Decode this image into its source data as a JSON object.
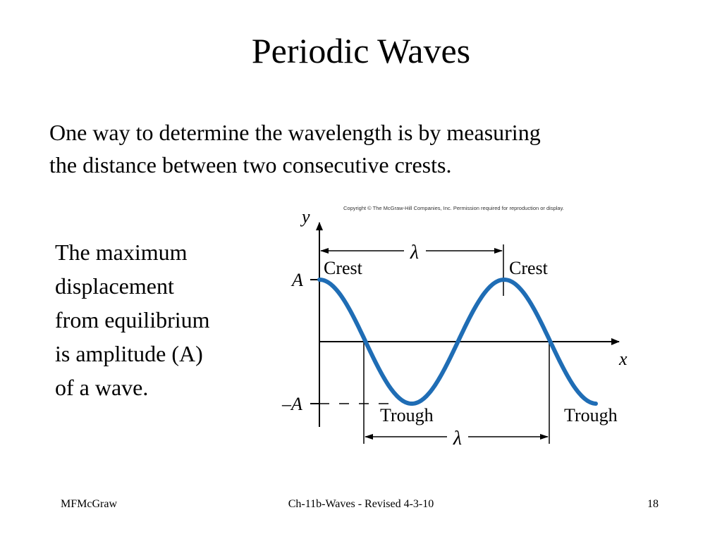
{
  "title": "Periodic Waves",
  "intro_lines": [
    "One way to determine the wavelength is by measuring",
    "the distance between two consecutive crests."
  ],
  "side_lines": [
    "The maximum",
    "displacement",
    "from equilibrium",
    "is amplitude (A)",
    "of a wave."
  ],
  "diagram": {
    "copyright": "Copyright © The McGraw-Hill Companies, Inc. Permission required for reproduction or display.",
    "y_axis_label": "y",
    "x_axis_label": "x",
    "amplitude_label": "A",
    "negative_amplitude_label": "–A",
    "wavelength_label": "λ",
    "crest_label": "Crest",
    "trough_label": "Trough",
    "wave_color": "#1f6db5"
  },
  "footer": {
    "author": "MFMcGraw",
    "center": "Ch-11b-Waves - Revised 4-3-10",
    "page_number": "18"
  }
}
